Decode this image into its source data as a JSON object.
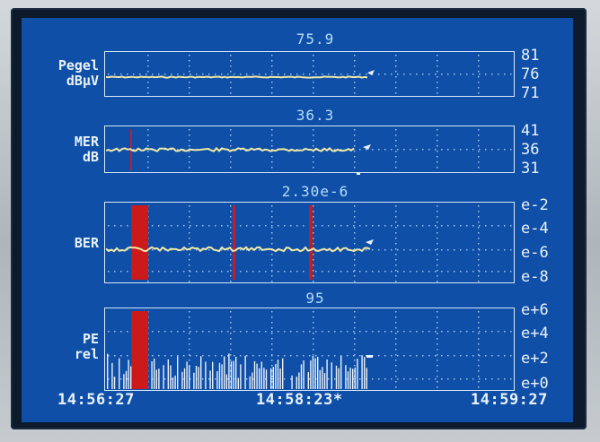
{
  "panels": [
    {
      "id": "pegel",
      "value": "75.9",
      "label_lines": [
        "Pegel",
        "dBµV"
      ],
      "ticks": [
        "81",
        "76",
        "71"
      ]
    },
    {
      "id": "mer",
      "value": "36.3",
      "label_lines": [
        "MER",
        "dB"
      ],
      "ticks": [
        "41",
        "36",
        "31"
      ]
    },
    {
      "id": "ber",
      "value": "2.30e-6",
      "label_lines": [
        "BER"
      ],
      "ticks": [
        "e-2",
        "e-4",
        "e-6",
        "e-8"
      ]
    },
    {
      "id": "pe",
      "value": "95",
      "label_lines": [
        "PE",
        "rel"
      ],
      "ticks": [
        "e+6",
        "e+4",
        "e+2",
        "e+0"
      ]
    }
  ],
  "time_axis": {
    "start": "14:56:27",
    "cursor": "14:58:23*",
    "end": "14:59:27"
  },
  "colors": {
    "background": "#0f4fa8",
    "trace": "#efe9a6",
    "alarm": "#cc1a1a",
    "grid": "#d7e8f8"
  }
}
